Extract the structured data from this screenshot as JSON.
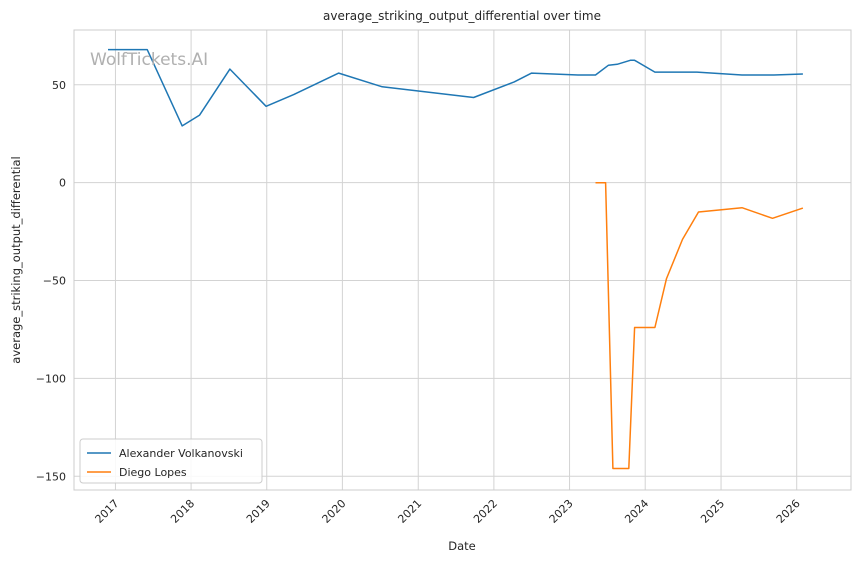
{
  "watermark": "WolfTickets.AI",
  "chart_data": {
    "type": "line",
    "title": "average_striking_output_differential over time",
    "xlabel": "Date",
    "ylabel": "average_striking_output_differential",
    "xlim": [
      "2016-06-15",
      "2026-09-20"
    ],
    "ylim": [
      -157,
      78
    ],
    "x_ticks": [
      "2017",
      "2018",
      "2019",
      "2020",
      "2021",
      "2022",
      "2023",
      "2024",
      "2025",
      "2026"
    ],
    "y_ticks": [
      50,
      0,
      -50,
      -100,
      -150
    ],
    "grid": true,
    "legend": "lower-left",
    "series": [
      {
        "name": "Alexander Volkanovski",
        "color": "#1f77b4",
        "points": [
          [
            "2016-11-26",
            68
          ],
          [
            "2017-06-03",
            68
          ],
          [
            "2017-11-19",
            29
          ],
          [
            "2018-02-11",
            34.5
          ],
          [
            "2018-07-07",
            58
          ],
          [
            "2018-12-29",
            39
          ],
          [
            "2019-05-11",
            45
          ],
          [
            "2019-12-14",
            56
          ],
          [
            "2020-07-11",
            49
          ],
          [
            "2021-09-25",
            43.5
          ],
          [
            "2022-04-09",
            51.5
          ],
          [
            "2022-07-02",
            56
          ],
          [
            "2023-02-11",
            55
          ],
          [
            "2023-05-06",
            55
          ],
          [
            "2023-07-08",
            60
          ],
          [
            "2023-08-19",
            60.5
          ],
          [
            "2023-10-21",
            62.5
          ],
          [
            "2023-11-11",
            62.5
          ],
          [
            "2024-02-17",
            56.5
          ],
          [
            "2024-09-07",
            56.5
          ],
          [
            "2025-04-12",
            55
          ],
          [
            "2025-09-13",
            55
          ],
          [
            "2026-01-31",
            55.5
          ]
        ]
      },
      {
        "name": "Diego Lopes",
        "color": "#ff7f0e",
        "points": [
          [
            "2023-05-06",
            0
          ],
          [
            "2023-06-24",
            0
          ],
          [
            "2023-07-29",
            -146
          ],
          [
            "2023-10-14",
            -146
          ],
          [
            "2023-11-11",
            -74
          ],
          [
            "2024-02-17",
            -74
          ],
          [
            "2024-04-13",
            -49
          ],
          [
            "2024-06-29",
            -29
          ],
          [
            "2024-09-14",
            -15
          ],
          [
            "2025-04-12",
            -12.8
          ],
          [
            "2025-09-06",
            -18.2
          ],
          [
            "2026-01-31",
            -13
          ]
        ]
      }
    ]
  }
}
